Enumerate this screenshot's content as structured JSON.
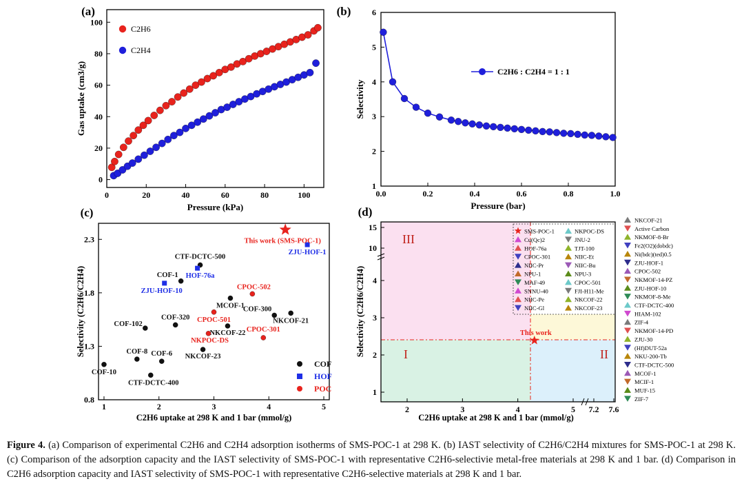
{
  "panels": [
    {
      "id": "a",
      "label": "(a)",
      "chart_data": {
        "type": "scatter",
        "xlabel": "Pressure (kPa)",
        "ylabel": "Gas uptake (cm3/g)",
        "xlim": [
          0,
          110
        ],
        "ylim": [
          -5,
          108
        ],
        "xticks": [
          0,
          20,
          40,
          60,
          80,
          100
        ],
        "yticks": [
          0,
          20,
          40,
          60,
          80,
          100
        ],
        "legend_position": "top-left",
        "series": [
          {
            "name": "C2H6",
            "color": "#e8231d",
            "x": [
              2.5,
              4,
              6,
              8.5,
              11,
              13.5,
              16,
              18.5,
              21,
              24,
              27,
              30,
              33,
              36,
              39,
              42,
              45,
              48,
              51,
              54,
              57,
              60,
              63,
              66,
              69,
              72,
              75,
              78,
              81,
              84,
              87,
              90,
              93,
              96,
              99,
              102,
              105,
              107
            ],
            "y": [
              7.8,
              11.5,
              16,
              20.5,
              24.5,
              28,
              31.5,
              34.5,
              37.5,
              40.8,
              44,
              47,
              49.5,
              52.5,
              55,
              57.5,
              60,
              62,
              64.2,
              66,
              68,
              70,
              71.5,
              73.5,
              75,
              76.8,
              78.5,
              80,
              81.5,
              83,
              84.5,
              86,
              87.5,
              89,
              90.5,
              92,
              94.5,
              96.5
            ]
          },
          {
            "name": "C2H4",
            "color": "#1f1fdb",
            "x": [
              3.5,
              5.5,
              8,
              10.5,
              13,
              16,
              19,
              22,
              25,
              28,
              31,
              34,
              37,
              40,
              43,
              46,
              49,
              52,
              55,
              58,
              61,
              64,
              67,
              70,
              73,
              76,
              79,
              82,
              85,
              88,
              91,
              94,
              97,
              100,
              103,
              106
            ],
            "y": [
              2.5,
              4,
              6.2,
              8.5,
              10.5,
              13,
              15.5,
              18,
              20.5,
              23,
              25.5,
              28,
              30,
              32.5,
              34.5,
              36.5,
              38.5,
              40.5,
              42.5,
              44.5,
              46,
              47.8,
              49.5,
              51.2,
              52.8,
              54.5,
              56,
              57.5,
              59,
              60.5,
              62,
              63.5,
              65,
              66.5,
              68,
              74
            ]
          }
        ]
      }
    },
    {
      "id": "b",
      "label": "(b)",
      "chart_data": {
        "type": "line",
        "xlabel": "Pressure (bar)",
        "ylabel": "Selectivity",
        "xlim": [
          0,
          1.0
        ],
        "ylim": [
          1,
          6
        ],
        "xticks": [
          "0.0",
          "0.2",
          "0.4",
          "0.6",
          "0.8",
          "1.0"
        ],
        "yticks": [
          "1",
          "2",
          "3",
          "4",
          "5",
          "6"
        ],
        "series": [
          {
            "name": "C2H6 : C2H4 = 1 : 1",
            "color": "#1f1fdb",
            "x": [
              0.01,
              0.05,
              0.1,
              0.15,
              0.2,
              0.25,
              0.3,
              0.33,
              0.36,
              0.39,
              0.42,
              0.45,
              0.48,
              0.51,
              0.54,
              0.57,
              0.6,
              0.63,
              0.66,
              0.69,
              0.72,
              0.75,
              0.78,
              0.81,
              0.84,
              0.87,
              0.9,
              0.93,
              0.96,
              0.99
            ],
            "y": [
              5.43,
              4.0,
              3.52,
              3.27,
              3.1,
              2.99,
              2.9,
              2.86,
              2.82,
              2.79,
              2.76,
              2.73,
              2.71,
              2.69,
              2.67,
              2.65,
              2.63,
              2.61,
              2.59,
              2.57,
              2.56,
              2.54,
              2.52,
              2.51,
              2.49,
              2.47,
              2.46,
              2.44,
              2.42,
              2.4
            ]
          }
        ]
      }
    },
    {
      "id": "c",
      "label": "(c)",
      "chart_data": {
        "type": "scatter",
        "xlabel": "C2H6 uptake at 298 K and 1 bar (mmol/g)",
        "ylabel": "Selectivity (C2H6/C2H4)",
        "xlim": [
          0.9,
          5.1
        ],
        "ylim": [
          0.8,
          2.45
        ],
        "xticks": [
          "1",
          "2",
          "3",
          "4",
          "5"
        ],
        "yticks": [
          "0.8",
          "1.3",
          "1.8",
          "2.3"
        ],
        "legend_position": "bottom-right",
        "legend": [
          {
            "name": "COF",
            "color": "#111111",
            "marker": "circle"
          },
          {
            "name": "HOF",
            "color": "#1e2ee6",
            "marker": "square"
          },
          {
            "name": "POC",
            "color": "#e8231d",
            "marker": "circle"
          }
        ],
        "points": [
          {
            "name": "COF-10",
            "x": 1.0,
            "y": 1.13,
            "group": "COF",
            "color": "#111111"
          },
          {
            "name": "COF-8",
            "x": 1.6,
            "y": 1.18,
            "group": "COF",
            "color": "#111111"
          },
          {
            "name": "COF-102",
            "x": 1.75,
            "y": 1.47,
            "group": "COF",
            "color": "#111111"
          },
          {
            "name": "CTF-DCTC-400",
            "x": 1.85,
            "y": 1.03,
            "group": "COF",
            "color": "#111111"
          },
          {
            "name": "COF-6",
            "x": 2.05,
            "y": 1.16,
            "group": "COF",
            "color": "#111111"
          },
          {
            "name": "COF-320",
            "x": 2.3,
            "y": 1.5,
            "group": "COF",
            "color": "#111111"
          },
          {
            "name": "COF-1",
            "x": 2.4,
            "y": 1.91,
            "group": "COF",
            "color": "#111111"
          },
          {
            "name": "CTF-DCTC-500",
            "x": 2.75,
            "y": 2.06,
            "group": "COF",
            "color": "#111111"
          },
          {
            "name": "NKCOF-23",
            "x": 2.8,
            "y": 1.27,
            "group": "COF",
            "color": "#111111"
          },
          {
            "name": "NKCOF-22",
            "x": 3.25,
            "y": 1.49,
            "group": "COF",
            "color": "#111111"
          },
          {
            "name": "MCOF-1",
            "x": 3.3,
            "y": 1.75,
            "group": "COF",
            "color": "#111111"
          },
          {
            "name": "COF-300",
            "x": 4.1,
            "y": 1.59,
            "group": "COF",
            "color": "#111111"
          },
          {
            "name": "NKCOF-21",
            "x": 4.4,
            "y": 1.61,
            "group": "COF",
            "color": "#111111"
          },
          {
            "name": "HOF-76a",
            "x": 2.7,
            "y": 2.03,
            "group": "HOF",
            "color": "#1e2ee6"
          },
          {
            "name": "ZJU-HOF-10",
            "x": 2.1,
            "y": 1.89,
            "group": "HOF",
            "color": "#1e2ee6"
          },
          {
            "name": "ZJU-HOF-1",
            "x": 4.7,
            "y": 2.25,
            "group": "HOF",
            "color": "#1e2ee6"
          },
          {
            "name": "NKPOC-DS",
            "x": 2.9,
            "y": 1.42,
            "group": "POC",
            "color": "#e8231d"
          },
          {
            "name": "CPOC-501",
            "x": 3.0,
            "y": 1.62,
            "group": "POC",
            "color": "#e8231d"
          },
          {
            "name": "CPOC-502",
            "x": 3.7,
            "y": 1.79,
            "group": "POC",
            "color": "#e8231d"
          },
          {
            "name": "CPOC-301",
            "x": 3.9,
            "y": 1.38,
            "group": "POC",
            "color": "#e8231d"
          }
        ],
        "highlight": {
          "name": "This work (SMS-POC-1)",
          "x": 4.3,
          "y": 2.39,
          "color": "#e8231d",
          "marker": "star"
        }
      }
    },
    {
      "id": "d",
      "label": "(d)",
      "chart_data": {
        "type": "scatter",
        "xlabel": "C2H6 uptake at 298 K and 1 bar (mmol/g)",
        "ylabel": "Selectivity (C2H6/C2H4)",
        "xticks": [
          "2",
          "3",
          "4",
          "5",
          "7.2",
          "7.6"
        ],
        "yticks": [
          "1",
          "2",
          "3",
          "4",
          "10",
          "15"
        ],
        "x_axis_break": "between 5 and 7.2",
        "y_axis_break": "between 4 and 10",
        "regions": [
          {
            "label": "I",
            "color": "#d9f2e4"
          },
          {
            "label": "II",
            "color": "#dcf0fb"
          },
          {
            "label": "III",
            "color": "#fbe0f0"
          },
          {
            "label": "",
            "color": "#fdf8d8"
          }
        ],
        "highlight": {
          "name": "This work",
          "x": 4.3,
          "y": 2.39,
          "color": "#e8231d",
          "marker": "star"
        },
        "legend": [
          "SMS-POC-1",
          "NKPOC-DS",
          "Cu(Qc)2",
          "JNU-2",
          "HOF-76a",
          "TJT-100",
          "CPOC-301",
          "NIIC-Et",
          "NIIC-Pr",
          "NIIC-Bu",
          "NPU-1",
          "NPU-3",
          "MAF-49",
          "CPOC-501",
          "SNNU-40",
          "FJI-H11-Me",
          "NIIC-Pe",
          "NKCOF-22",
          "NIIC-Gl",
          "NKCOF-23"
        ],
        "side_legend": [
          "NKCOF-21",
          "Active Carbon",
          "NKMOF-8-Br",
          "Fe2(O2)(dobdc)",
          "Ni(bdc)(ted)0.5",
          "ZJU-HOF-1",
          "CPOC-502",
          "NKMOF-14-PZ",
          "ZJU-HOF-10",
          "NKMOF-8-Me",
          "CTF-DCTC-400",
          "HIAM-102",
          "ZIF-4",
          "NKMOF-14-PD",
          "ZJU-30",
          "(Hf)DUT-52a",
          "NKU-200-Tb",
          "CTF-DCTC-500",
          "MCOF-1",
          "MCIF-1",
          "MUF-15",
          "ZIF-7"
        ]
      }
    }
  ],
  "caption": {
    "lead": "Figure 4.",
    "text": " (a) Comparison of experimental C2H6 and C2H4 adsorption isotherms of SMS-POC-1 at 298 K. (b) IAST selectivity of C2H6/C2H4 mixtures for SMS-POC-1 at 298 K. (c) Comparison of the adsorption capacity and the IAST selectivity of SMS-POC-1 with representative C2H6-selectivie metal-free materials at 298 K and 1 bar. (d) Comparison in C2H6 adsorption capacity and IAST selectivity of SMS-POC-1 with representative C2H6-selective materials at 298 K and 1 bar."
  }
}
